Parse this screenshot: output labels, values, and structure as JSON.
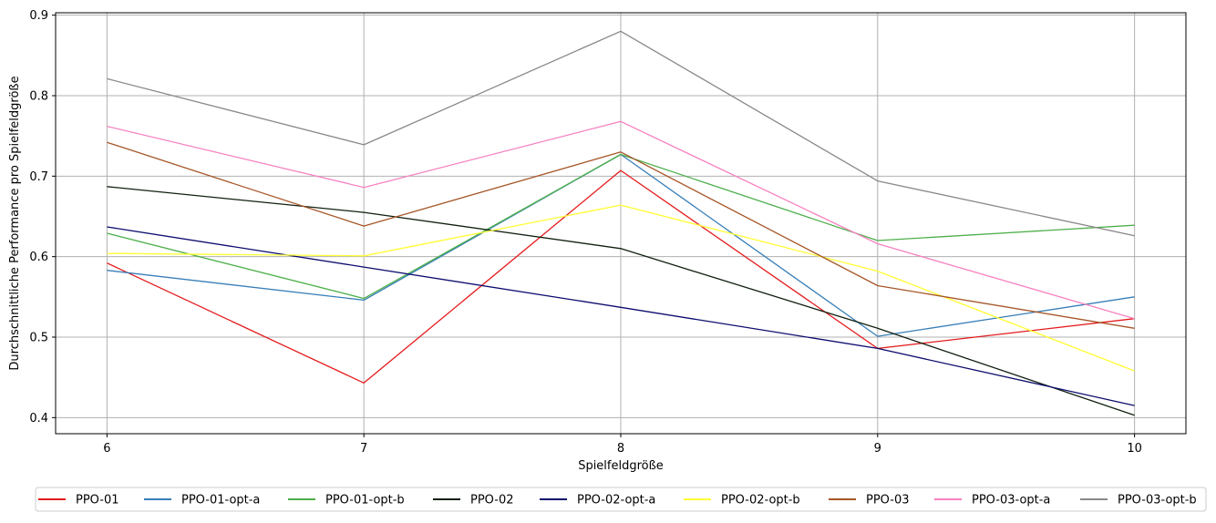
{
  "chart_data": {
    "type": "line",
    "title": "",
    "xlabel": "Spielfeldgröße",
    "ylabel": "Durchschnittliche Performance pro Spielfeldgröße",
    "x": [
      6,
      7,
      8,
      9,
      10
    ],
    "xlim": [
      5.8,
      10.2
    ],
    "ylim": [
      0.38,
      0.903
    ],
    "xticks": [
      "6",
      "7",
      "8",
      "9",
      "10"
    ],
    "yticks": [
      "0.4",
      "0.5",
      "0.6",
      "0.7",
      "0.8",
      "0.9"
    ],
    "grid": true,
    "legend_position": "bottom",
    "series": [
      {
        "name": "PPO-01",
        "color": "#e41a1c",
        "values": [
          0.592,
          0.443,
          0.707,
          0.486,
          0.523
        ]
      },
      {
        "name": "PPO-01-opt-a",
        "color": "#377eb8",
        "values": [
          0.583,
          0.546,
          0.727,
          0.501,
          0.55
        ]
      },
      {
        "name": "PPO-01-opt-b",
        "color": "#4daf4a",
        "values": [
          0.629,
          0.548,
          0.727,
          0.62,
          0.639
        ]
      },
      {
        "name": "PPO-02",
        "color": "#102010",
        "values": [
          0.687,
          0.655,
          0.61,
          0.511,
          0.403
        ]
      },
      {
        "name": "PPO-02-opt-a",
        "color": "#0c0c6e",
        "values": [
          0.637,
          0.587,
          0.537,
          0.486,
          0.415
        ]
      },
      {
        "name": "PPO-02-opt-b",
        "color": "#ffff33",
        "values": [
          0.604,
          0.601,
          0.664,
          0.582,
          0.458
        ]
      },
      {
        "name": "PPO-03",
        "color": "#a65628",
        "values": [
          0.742,
          0.638,
          0.73,
          0.564,
          0.511
        ]
      },
      {
        "name": "PPO-03-opt-a",
        "color": "#f781bf",
        "values": [
          0.762,
          0.686,
          0.768,
          0.616,
          0.523
        ]
      },
      {
        "name": "PPO-03-opt-b",
        "color": "#888888",
        "values": [
          0.821,
          0.739,
          0.88,
          0.694,
          0.626
        ]
      }
    ]
  }
}
